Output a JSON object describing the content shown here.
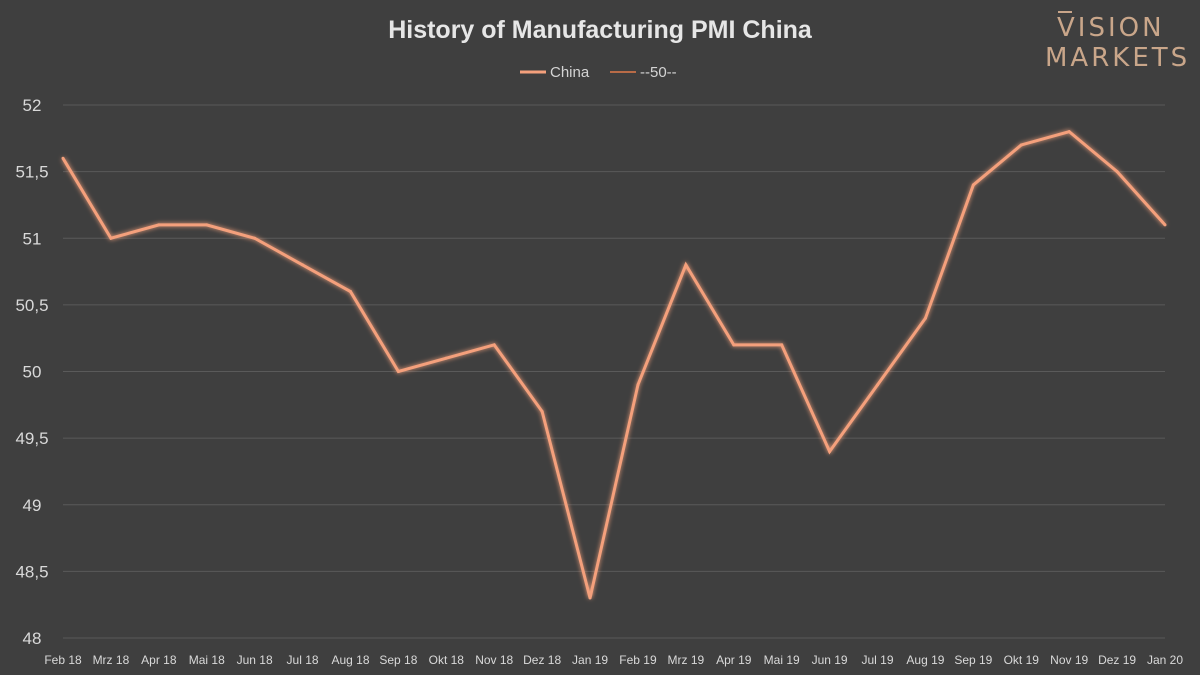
{
  "logo": {
    "line1": "VISION",
    "line2": "MARKETS"
  },
  "colors": {
    "background": "#3f3f3f",
    "grid": "#5a5a5a",
    "china_line": "#f4a07c",
    "fifty_line": "#e07a4a",
    "logo": "#c9a68a"
  },
  "chart_data": {
    "type": "line",
    "title": "History of Manufacturing PMI China",
    "xlabel": "",
    "ylabel": "",
    "categories": [
      "Feb 18",
      "Mrz 18",
      "Apr 18",
      "Mai 18",
      "Jun 18",
      "Jul 18",
      "Aug 18",
      "Sep 18",
      "Okt 18",
      "Nov 18",
      "Dez 18",
      "Jan 19",
      "Feb 19",
      "Mrz 19",
      "Apr 19",
      "Mai 19",
      "Jun 19",
      "Jul 19",
      "Aug 19",
      "Sep 19",
      "Okt 19",
      "Nov 19",
      "Dez 19",
      "Jan 20"
    ],
    "ylim": [
      48,
      52
    ],
    "yticks": [
      "48",
      "48,5",
      "49",
      "49,5",
      "50",
      "50,5",
      "51",
      "51,5",
      "52"
    ],
    "grid": true,
    "legend_position": "top-center",
    "series": [
      {
        "name": "China",
        "values": [
          51.6,
          51.0,
          51.1,
          51.1,
          51.0,
          50.8,
          50.6,
          50.0,
          50.1,
          50.2,
          49.7,
          48.3,
          49.9,
          50.8,
          50.2,
          50.2,
          49.4,
          49.9,
          50.4,
          51.4,
          51.7,
          51.8,
          51.5,
          51.1
        ]
      },
      {
        "name": "--50--",
        "values": [
          50,
          50,
          50,
          50,
          50,
          50,
          50,
          50,
          50,
          50,
          50,
          50,
          50,
          50,
          50,
          50,
          50,
          50,
          50,
          50,
          50,
          50,
          50,
          50
        ]
      }
    ]
  }
}
